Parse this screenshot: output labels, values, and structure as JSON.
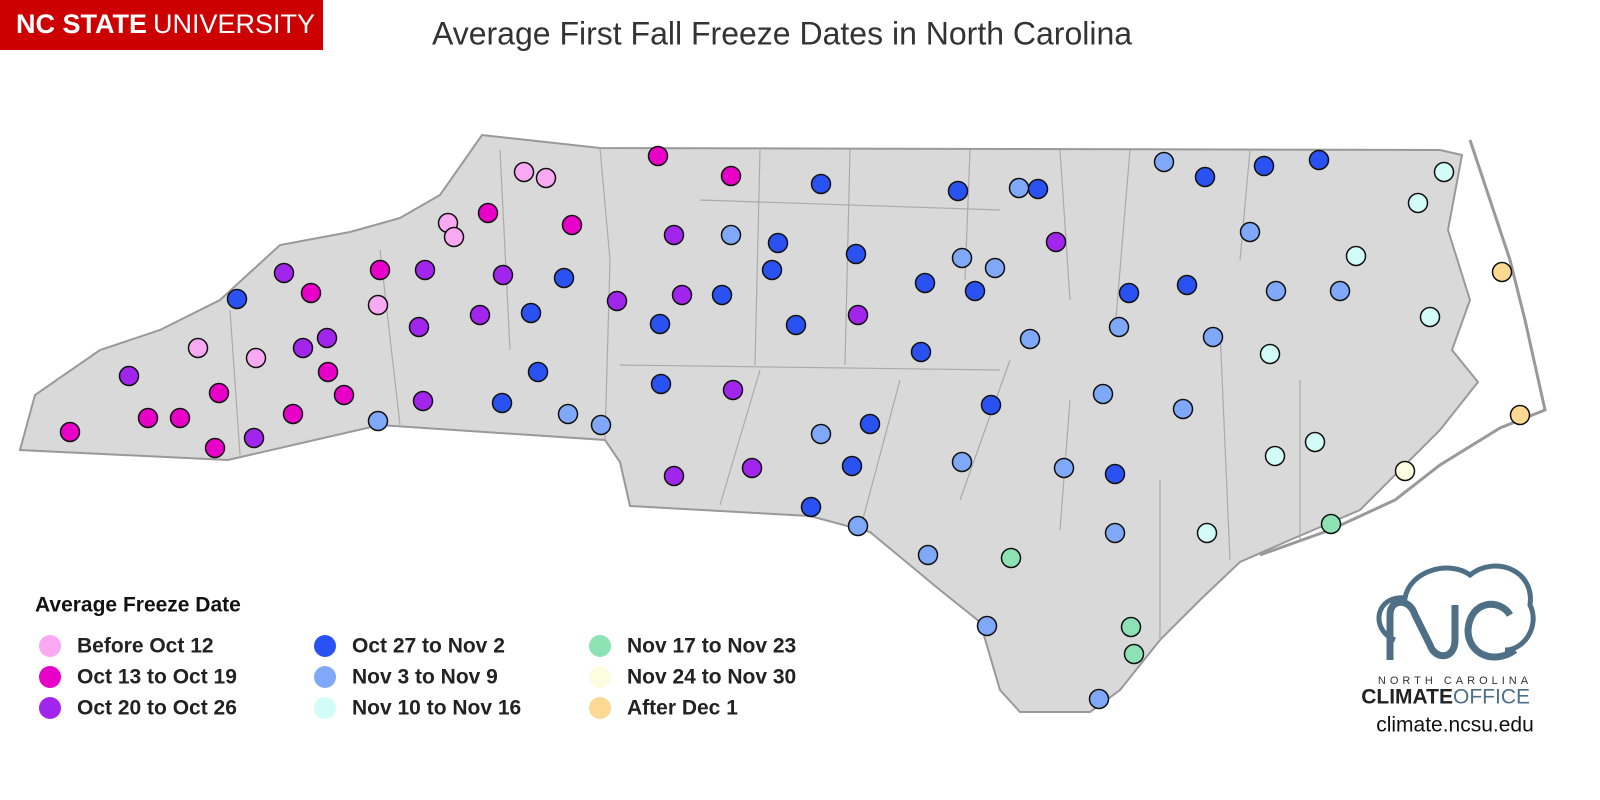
{
  "header": {
    "logo_bold": "NC STATE",
    "logo_light": "UNIVERSITY",
    "title": "Average First Fall Freeze Dates in North Carolina"
  },
  "legend": {
    "title": "Average Freeze Date",
    "items": [
      {
        "label": "Before Oct 12",
        "color": "#f9a8f2"
      },
      {
        "label": "Oct 13 to Oct 19",
        "color": "#e800c8"
      },
      {
        "label": "Oct 20 to Oct 26",
        "color": "#a225ee"
      },
      {
        "label": "Oct 27 to Nov 2",
        "color": "#2a52f2"
      },
      {
        "label": "Nov 3 to Nov 9",
        "color": "#80a8f8"
      },
      {
        "label": "Nov 10 to Nov 16",
        "color": "#d2fcf8"
      },
      {
        "label": "Nov 17 to Nov 23",
        "color": "#8ce2b2"
      },
      {
        "label": "Nov 24 to Nov 30",
        "color": "#fcfce0"
      },
      {
        "label": "After Dec 1",
        "color": "#fcd892"
      }
    ]
  },
  "footer": {
    "region": "NORTH CAROLINA",
    "office_bold": "CLIMATE",
    "office_light": "OFFICE",
    "url": "climate.ncsu.edu"
  }
}
